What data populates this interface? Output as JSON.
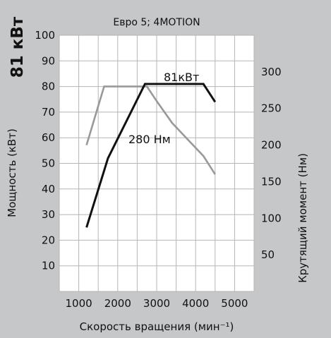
{
  "header": {
    "power_rating": "81 кВт"
  },
  "chart_data": {
    "type": "line",
    "title": "Евро 5; 4MOTION",
    "xlabel": "Скорость вращения (мин⁻¹)",
    "ylabel": "Мощность (кВт)",
    "ylabel_right": "Крутящий момент (Нм)",
    "xlim": [
      500,
      5500
    ],
    "ylim": [
      0,
      100
    ],
    "ylim_right": [
      0,
      350
    ],
    "x_ticks": [
      "1000",
      "2000",
      "3000",
      "4000",
      "5000"
    ],
    "y_ticks": [
      "10",
      "20",
      "30",
      "40",
      "50",
      "60",
      "70",
      "80",
      "90",
      "100"
    ],
    "y_ticks_right": [
      "50",
      "100",
      "150",
      "200",
      "250",
      "300"
    ],
    "grid": true,
    "series": [
      {
        "name": "81кВт",
        "axis": "left",
        "color": "#111111",
        "x": [
          1200,
          1750,
          2700,
          4200,
          4500
        ],
        "y": [
          25,
          52,
          81,
          81,
          74
        ]
      },
      {
        "name": "280 Нм",
        "axis": "right",
        "color": "#999999",
        "x": [
          1200,
          1650,
          2750,
          3000,
          3400,
          4200,
          4500
        ],
        "y": [
          200,
          280,
          280,
          260,
          230,
          185,
          160
        ]
      }
    ],
    "annotations": [
      {
        "text": "81кВт",
        "series": 0
      },
      {
        "text": "280 Нм",
        "series": 1
      }
    ]
  }
}
